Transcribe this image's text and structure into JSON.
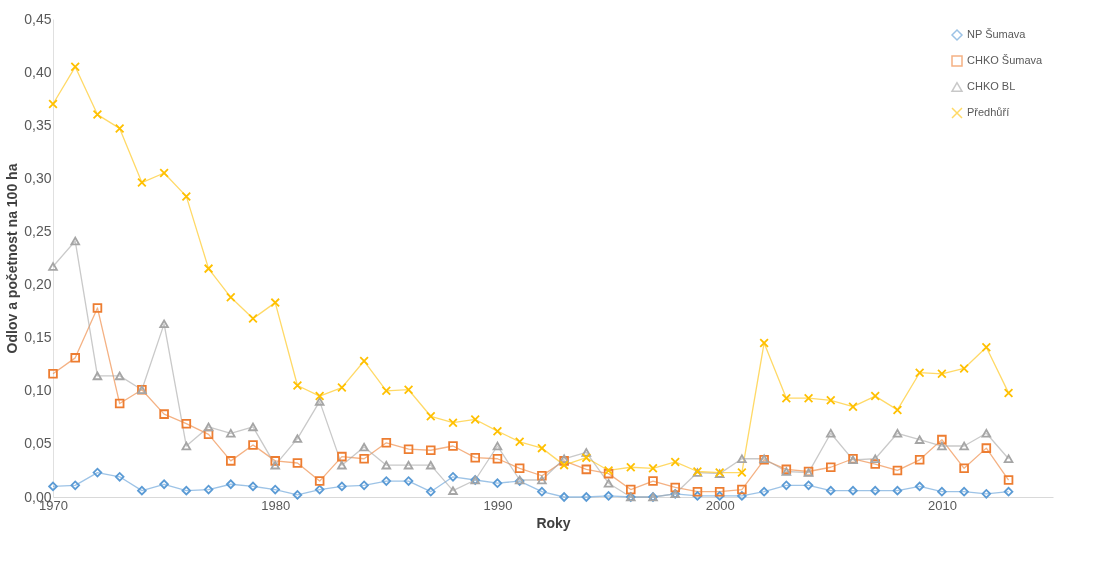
{
  "chart_data": {
    "type": "line",
    "xlabel": "Roky",
    "ylabel": "Odlov a početnost na 100 ha",
    "x": [
      1970,
      1971,
      1972,
      1973,
      1974,
      1975,
      1976,
      1977,
      1978,
      1979,
      1980,
      1981,
      1982,
      1983,
      1984,
      1985,
      1986,
      1987,
      1988,
      1989,
      1990,
      1991,
      1992,
      1993,
      1994,
      1995,
      1996,
      1997,
      1998,
      1999,
      2000,
      2001,
      2002,
      2003,
      2004,
      2005,
      2006,
      2007,
      2008,
      2009,
      2010,
      2011,
      2012,
      2013
    ],
    "series": [
      {
        "name": "NP Šumava",
        "color": "#5b9bd5",
        "marker": "diamond",
        "values": [
          0.01,
          0.011,
          0.023,
          0.019,
          0.006,
          0.012,
          0.006,
          0.007,
          0.012,
          0.01,
          0.007,
          0.002,
          0.007,
          0.01,
          0.011,
          0.015,
          0.015,
          0.005,
          0.019,
          0.016,
          0.013,
          0.015,
          0.005,
          0.0,
          0.0,
          0.001,
          0.0,
          0.0,
          0.003,
          0.001,
          0.001,
          0.001,
          0.005,
          0.011,
          0.011,
          0.006,
          0.006,
          0.006,
          0.006,
          0.01,
          0.005,
          0.005,
          0.003,
          0.005
        ]
      },
      {
        "name": "CHKO Šumava",
        "color": "#ed7d31",
        "marker": "square",
        "values": [
          0.116,
          0.131,
          0.178,
          0.088,
          0.101,
          0.078,
          0.069,
          0.059,
          0.034,
          0.049,
          0.034,
          0.032,
          0.015,
          0.038,
          0.036,
          0.051,
          0.045,
          0.044,
          0.048,
          0.037,
          0.036,
          0.027,
          0.02,
          0.034,
          0.026,
          0.022,
          0.007,
          0.015,
          0.009,
          0.005,
          0.005,
          0.007,
          0.035,
          0.026,
          0.024,
          0.028,
          0.036,
          0.031,
          0.025,
          0.035,
          0.054,
          0.027,
          0.046,
          0.016
        ]
      },
      {
        "name": "CHKO BL",
        "color": "#a5a5a5",
        "marker": "triangle",
        "values": [
          0.217,
          0.241,
          0.114,
          0.114,
          0.101,
          0.163,
          0.048,
          0.066,
          0.06,
          0.066,
          0.03,
          0.055,
          0.09,
          0.03,
          0.047,
          0.03,
          0.03,
          0.03,
          0.006,
          0.016,
          0.048,
          0.016,
          0.016,
          0.036,
          0.042,
          0.013,
          0.0,
          0.0,
          0.003,
          0.023,
          0.022,
          0.036,
          0.036,
          0.024,
          0.023,
          0.06,
          0.035,
          0.036,
          0.06,
          0.054,
          0.048,
          0.048,
          0.06,
          0.036
        ]
      },
      {
        "name": "Předhůří",
        "color": "#ffc000",
        "marker": "cross",
        "values": [
          0.37,
          0.405,
          0.36,
          0.347,
          0.296,
          0.305,
          0.283,
          0.215,
          0.188,
          0.168,
          0.183,
          0.105,
          0.095,
          0.103,
          0.128,
          0.1,
          0.101,
          0.076,
          0.07,
          0.073,
          0.062,
          0.052,
          0.046,
          0.03,
          0.037,
          0.025,
          0.028,
          0.027,
          0.033,
          0.024,
          0.023,
          0.023,
          0.145,
          0.093,
          0.093,
          0.091,
          0.085,
          0.095,
          0.082,
          0.117,
          0.116,
          0.121,
          0.141,
          0.098
        ]
      }
    ],
    "xlim": [
      1970,
      2015
    ],
    "xticks": [
      1970,
      1980,
      1990,
      2000,
      2010
    ],
    "ylim": [
      0,
      0.45
    ],
    "yticks": [
      {
        "value": 0,
        "label": "0,00"
      },
      {
        "value": 0.05,
        "label": "0,05"
      },
      {
        "value": 0.1,
        "label": "0,10"
      },
      {
        "value": 0.15,
        "label": "0,15"
      },
      {
        "value": 0.2,
        "label": "0,20"
      },
      {
        "value": 0.25,
        "label": "0,25"
      },
      {
        "value": 0.3,
        "label": "0,30"
      },
      {
        "value": 0.35,
        "label": "0,35"
      },
      {
        "value": 0.4,
        "label": "0,40"
      },
      {
        "value": 0.45,
        "label": "0,45"
      }
    ],
    "legend": "top right",
    "grid": false,
    "line_style": "solid"
  }
}
